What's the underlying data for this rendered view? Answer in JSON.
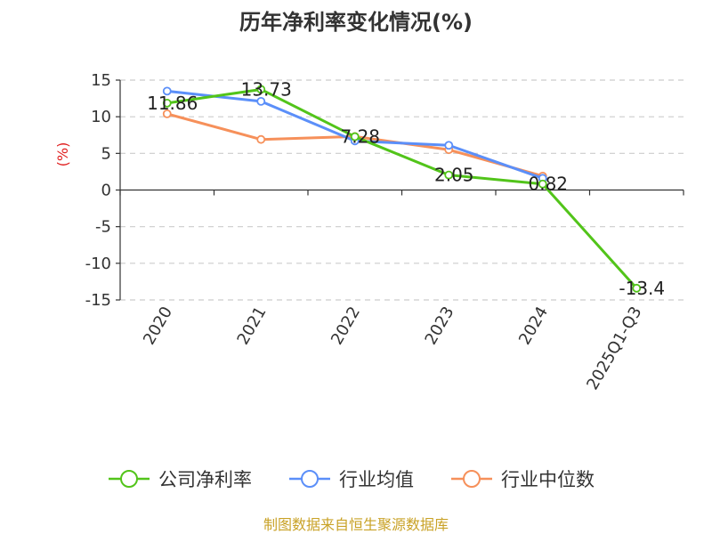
{
  "chart_data": {
    "type": "line",
    "title": "历年净利率变化情况(%)",
    "ylabel": "(%)",
    "xlabel": "",
    "categories": [
      "2020",
      "2021",
      "2022",
      "2023",
      "2024",
      "2025Q1-Q3"
    ],
    "ylim": [
      -15,
      15
    ],
    "yticks": [
      15,
      10,
      5,
      0,
      -5,
      -10,
      -15
    ],
    "grid": true,
    "legend": "bottom",
    "series": [
      {
        "name": "公司净利率",
        "color": "#52c41a",
        "values": [
          11.86,
          13.73,
          7.28,
          2.05,
          0.82,
          -13.4
        ],
        "labels": [
          "11.86",
          "13.73",
          "7.28",
          "2.05",
          "0.82",
          "-13.4"
        ]
      },
      {
        "name": "行业均值",
        "color": "#5b8ff9",
        "values": [
          13.5,
          12.1,
          6.7,
          6.1,
          1.6,
          null
        ]
      },
      {
        "name": "行业中位数",
        "color": "#f6905a",
        "values": [
          10.4,
          6.9,
          7.3,
          5.5,
          1.9,
          null
        ]
      }
    ],
    "ylabel_color": "#e02020"
  },
  "source": {
    "text": "制图数据来自恒生聚源数据库",
    "color": "#c9a227"
  }
}
